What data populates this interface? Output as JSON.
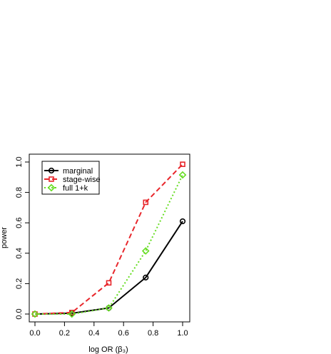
{
  "chart_data": {
    "type": "line",
    "title": "",
    "xlabel": "log OR (β₃)",
    "ylabel": "power",
    "x": [
      0.0,
      0.25,
      0.5,
      0.75,
      1.0
    ],
    "xlim": [
      0.0,
      1.0
    ],
    "ylim": [
      0.0,
      1.0
    ],
    "xticks": [
      "0.0",
      "0.2",
      "0.4",
      "0.6",
      "0.8",
      "1.0"
    ],
    "yticks": [
      "0.0",
      "0.2",
      "0.4",
      "0.6",
      "0.8",
      "1.0"
    ],
    "grid": false,
    "legend_position": "top-left",
    "series": [
      {
        "name": "marginal",
        "values": [
          0.0,
          0.005,
          0.04,
          0.24,
          0.61
        ],
        "color": "#000000",
        "line": "solid",
        "marker": "circle"
      },
      {
        "name": "stage-wise",
        "values": [
          0.0,
          0.01,
          0.205,
          0.735,
          0.985
        ],
        "color": "#e8262b",
        "line": "dashed",
        "marker": "square"
      },
      {
        "name": "full 1+k",
        "values": [
          0.0,
          0.0,
          0.04,
          0.415,
          0.915
        ],
        "color": "#66dd22",
        "line": "dotted",
        "marker": "diamond"
      }
    ]
  }
}
